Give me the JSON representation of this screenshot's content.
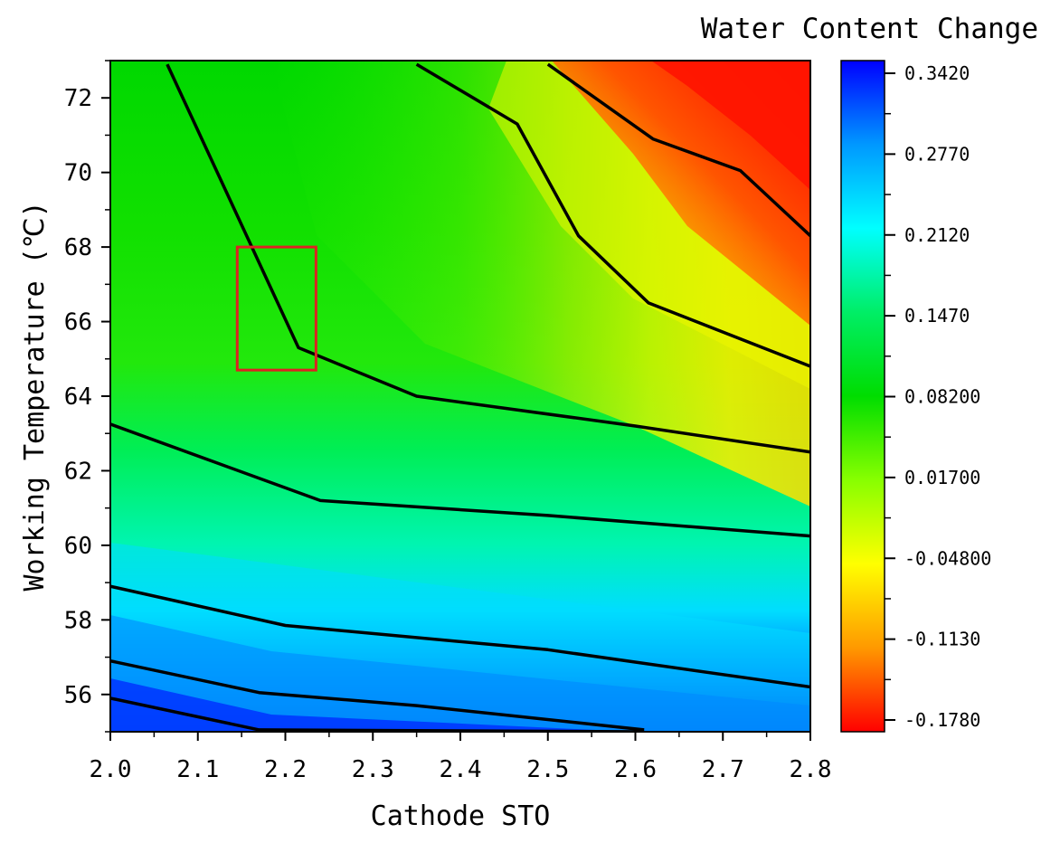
{
  "chart_data": {
    "type": "heatmap",
    "title": "Water Content Change",
    "xlabel": "Cathode STO",
    "ylabel": "Working Temperature (℃)",
    "xlim": [
      2.0,
      2.8
    ],
    "ylim": [
      55,
      73
    ],
    "x_ticks": [
      "2.0",
      "2.1",
      "2.2",
      "2.3",
      "2.4",
      "2.5",
      "2.6",
      "2.7",
      "2.8"
    ],
    "y_ticks": [
      "56",
      "58",
      "60",
      "62",
      "64",
      "66",
      "68",
      "70",
      "72"
    ],
    "colorbar": {
      "ticks": [
        "0.3420",
        "0.2770",
        "0.2120",
        "0.1470",
        "0.08200",
        "0.01700",
        "-0.04800",
        "-0.1130",
        "-0.1780"
      ],
      "max": 0.342,
      "min": -0.178,
      "colors": [
        "#0000ff",
        "#0098ff",
        "#00ffff",
        "#00ee66",
        "#00dd00",
        "#88ff00",
        "#ffff00",
        "#ff9900",
        "#ff0000"
      ]
    },
    "contour_lines": [
      [
        [
          2.0,
          55.9
        ],
        [
          2.17,
          55.05
        ],
        [
          2.61,
          55.0
        ]
      ],
      [
        [
          2.0,
          56.9
        ],
        [
          2.17,
          56.05
        ],
        [
          2.35,
          55.7
        ],
        [
          2.61,
          55.05
        ]
      ],
      [
        [
          2.0,
          58.9
        ],
        [
          2.2,
          57.85
        ],
        [
          2.5,
          57.2
        ],
        [
          2.8,
          56.2
        ]
      ],
      [
        [
          2.0,
          63.25
        ],
        [
          2.24,
          61.2
        ],
        [
          2.5,
          60.8
        ],
        [
          2.8,
          60.25
        ]
      ],
      [
        [
          2.065,
          72.9
        ],
        [
          2.215,
          65.3
        ],
        [
          2.35,
          64.0
        ],
        [
          2.6,
          63.2
        ],
        [
          2.8,
          62.5
        ]
      ],
      [
        [
          2.35,
          72.9
        ],
        [
          2.465,
          71.3
        ],
        [
          2.535,
          68.3
        ],
        [
          2.615,
          66.5
        ],
        [
          2.8,
          64.8
        ]
      ],
      [
        [
          2.5,
          72.9
        ],
        [
          2.62,
          70.9
        ],
        [
          2.72,
          70.05
        ],
        [
          2.8,
          68.3
        ]
      ]
    ],
    "annotations": [
      {
        "type": "rectangle",
        "x": [
          2.145,
          2.235
        ],
        "y": [
          64.7,
          68.0
        ],
        "color": "#dd2222"
      }
    ]
  }
}
